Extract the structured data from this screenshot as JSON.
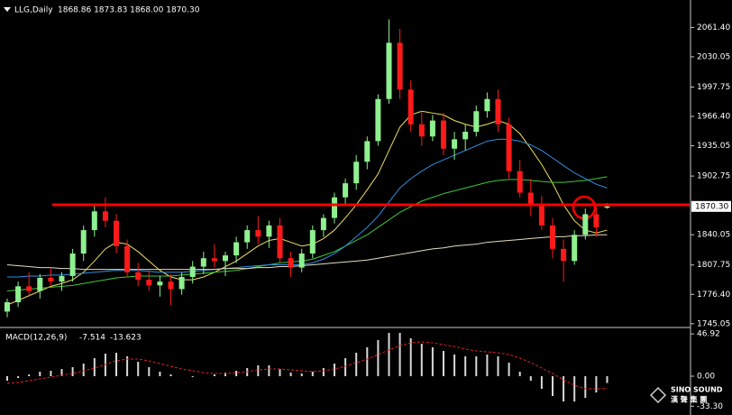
{
  "chart_data": [
    {
      "type": "candlestick",
      "title": "LLG,Daily",
      "ohlc_text": "1868.86 1873.83 1868.00 1870.30",
      "up_color": "#8ff08f",
      "down_color": "#ff1a1a",
      "open": [
        1758,
        1768,
        1785,
        1780,
        1794,
        1790,
        1796,
        1820,
        1845,
        1865,
        1855,
        1828,
        1800,
        1792,
        1786,
        1790,
        1782,
        1795,
        1806,
        1815,
        1812,
        1818,
        1832,
        1845,
        1838,
        1850,
        1815,
        1805,
        1820,
        1845,
        1858,
        1880,
        1895,
        1918,
        1940,
        1985,
        2045,
        1995,
        1958,
        1945,
        1962,
        1932,
        1942,
        1950,
        1972,
        1985,
        1958,
        1908,
        1885,
        1872,
        1850,
        1825,
        1812,
        1840,
        1862,
        1868.86
      ],
      "high": [
        1772,
        1790,
        1800,
        1798,
        1805,
        1800,
        1825,
        1850,
        1872,
        1880,
        1862,
        1835,
        1810,
        1802,
        1796,
        1798,
        1800,
        1812,
        1822,
        1830,
        1822,
        1838,
        1850,
        1860,
        1855,
        1858,
        1822,
        1825,
        1850,
        1862,
        1885,
        1900,
        1925,
        1945,
        1990,
        2070,
        2060,
        2005,
        1972,
        1968,
        1970,
        1950,
        1958,
        1978,
        1992,
        1995,
        1965,
        1920,
        1900,
        1882,
        1858,
        1835,
        1845,
        1868,
        1870,
        1873.83
      ],
      "low": [
        1752,
        1763,
        1775,
        1772,
        1786,
        1780,
        1790,
        1812,
        1838,
        1848,
        1820,
        1795,
        1785,
        1780,
        1774,
        1765,
        1776,
        1788,
        1798,
        1805,
        1796,
        1810,
        1825,
        1830,
        1826,
        1810,
        1795,
        1800,
        1815,
        1838,
        1852,
        1872,
        1888,
        1910,
        1935,
        1980,
        1985,
        1950,
        1935,
        1940,
        1925,
        1920,
        1930,
        1945,
        1965,
        1950,
        1900,
        1880,
        1860,
        1845,
        1815,
        1790,
        1808,
        1835,
        1838,
        1868.0
      ],
      "close": [
        1768,
        1785,
        1780,
        1794,
        1790,
        1796,
        1820,
        1845,
        1865,
        1855,
        1828,
        1800,
        1792,
        1786,
        1790,
        1782,
        1795,
        1806,
        1815,
        1812,
        1818,
        1832,
        1845,
        1838,
        1850,
        1815,
        1805,
        1820,
        1845,
        1858,
        1880,
        1895,
        1918,
        1940,
        1985,
        2045,
        1995,
        1958,
        1945,
        1962,
        1932,
        1942,
        1950,
        1972,
        1985,
        1958,
        1908,
        1885,
        1872,
        1850,
        1825,
        1812,
        1840,
        1862,
        1848,
        1870.3
      ],
      "lines": [
        {
          "color": "#f0e060",
          "values": [
            1765,
            1770,
            1775,
            1780,
            1785,
            1788,
            1792,
            1800,
            1812,
            1825,
            1832,
            1830,
            1822,
            1812,
            1802,
            1795,
            1792,
            1792,
            1795,
            1800,
            1806,
            1812,
            1820,
            1828,
            1834,
            1836,
            1832,
            1828,
            1830,
            1836,
            1845,
            1858,
            1872,
            1888,
            1905,
            1930,
            1955,
            1968,
            1972,
            1970,
            1968,
            1962,
            1958,
            1955,
            1958,
            1962,
            1958,
            1948,
            1932,
            1915,
            1895,
            1872,
            1855,
            1845,
            1842,
            1845
          ]
        },
        {
          "color": "#3cc83c",
          "values": [
            1780,
            1781,
            1782,
            1783,
            1784,
            1785,
            1786,
            1788,
            1790,
            1792,
            1794,
            1795,
            1796,
            1796,
            1796,
            1796,
            1797,
            1798,
            1799,
            1800,
            1801,
            1802,
            1804,
            1806,
            1808,
            1810,
            1811,
            1812,
            1814,
            1818,
            1822,
            1828,
            1834,
            1840,
            1848,
            1856,
            1864,
            1870,
            1876,
            1880,
            1884,
            1887,
            1890,
            1893,
            1896,
            1898,
            1899,
            1899,
            1898,
            1897,
            1896,
            1896,
            1897,
            1898,
            1900,
            1902
          ]
        },
        {
          "color": "#2f8fe0",
          "values": [
            1795,
            1795,
            1796,
            1796,
            1797,
            1797,
            1798,
            1799,
            1800,
            1801,
            1802,
            1802,
            1802,
            1801,
            1800,
            1800,
            1800,
            1801,
            1802,
            1803,
            1804,
            1805,
            1806,
            1807,
            1808,
            1808,
            1808,
            1808,
            1810,
            1814,
            1820,
            1828,
            1838,
            1848,
            1860,
            1875,
            1890,
            1900,
            1908,
            1915,
            1920,
            1925,
            1930,
            1935,
            1940,
            1942,
            1942,
            1940,
            1936,
            1930,
            1922,
            1914,
            1906,
            1900,
            1894,
            1890
          ]
        },
        {
          "color": "#e8dcc0",
          "values": [
            1808,
            1807,
            1806,
            1805,
            1805,
            1804,
            1804,
            1803,
            1803,
            1803,
            1803,
            1803,
            1803,
            1803,
            1803,
            1803,
            1803,
            1803,
            1803,
            1803,
            1804,
            1804,
            1804,
            1805,
            1805,
            1806,
            1806,
            1807,
            1808,
            1809,
            1810,
            1811,
            1812,
            1813,
            1815,
            1817,
            1819,
            1821,
            1823,
            1825,
            1826,
            1828,
            1829,
            1830,
            1832,
            1833,
            1834,
            1835,
            1836,
            1837,
            1838,
            1838,
            1839,
            1839,
            1840,
            1840
          ]
        }
      ],
      "hline": {
        "value": 1872,
        "color": "#ff0000"
      },
      "current_price": {
        "value": 1870.3,
        "label": "1870.30"
      },
      "ylim": [
        1742,
        2083
      ],
      "yticks": [
        {
          "value": 2061.4,
          "label": "2061.40"
        },
        2030.05,
        1997.75,
        {
          "value": 1966.4,
          "label": "1966.40"
        },
        1935.05,
        1902.75,
        1840.05,
        1807.75,
        {
          "value": 1776.4,
          "label": "1776.40"
        },
        1745.05
      ]
    },
    {
      "type": "macd",
      "title": "MACD(12,26,9)",
      "hist_color": "#d8d8d8",
      "signal_color": "#e02020",
      "histogram": [
        -5,
        -2,
        2,
        5,
        6,
        8,
        10,
        14,
        20,
        25,
        26,
        22,
        16,
        10,
        5,
        2,
        0,
        -1,
        0,
        2,
        4,
        6,
        9,
        12,
        12,
        8,
        4,
        3,
        5,
        9,
        14,
        20,
        26,
        32,
        40,
        48,
        48,
        42,
        36,
        32,
        28,
        24,
        22,
        22,
        24,
        22,
        15,
        5,
        -5,
        -14,
        -22,
        -28,
        -28,
        -24,
        -18,
        -7.514
      ],
      "signal": [
        -8,
        -7,
        -5,
        -3,
        -1,
        1,
        3,
        6,
        9,
        13,
        17,
        19,
        19,
        17,
        14,
        11,
        8,
        6,
        4,
        3,
        3,
        4,
        5,
        7,
        8,
        8,
        7,
        6,
        5,
        6,
        8,
        11,
        15,
        19,
        24,
        29,
        34,
        37,
        38,
        37,
        35,
        33,
        30,
        28,
        27,
        26,
        24,
        20,
        15,
        9,
        3,
        -4,
        -10,
        -14,
        -14,
        -13.623
      ],
      "ylim": [
        -41,
        53
      ],
      "yticks": [
        46.92,
        {
          "value": 0,
          "label": "0.00"
        },
        {
          "value": -33.3,
          "label": "-33.30"
        }
      ]
    }
  ],
  "watermark": {
    "name": "SINO SOUND",
    "subtitle": "漢 聲 集 團"
  }
}
